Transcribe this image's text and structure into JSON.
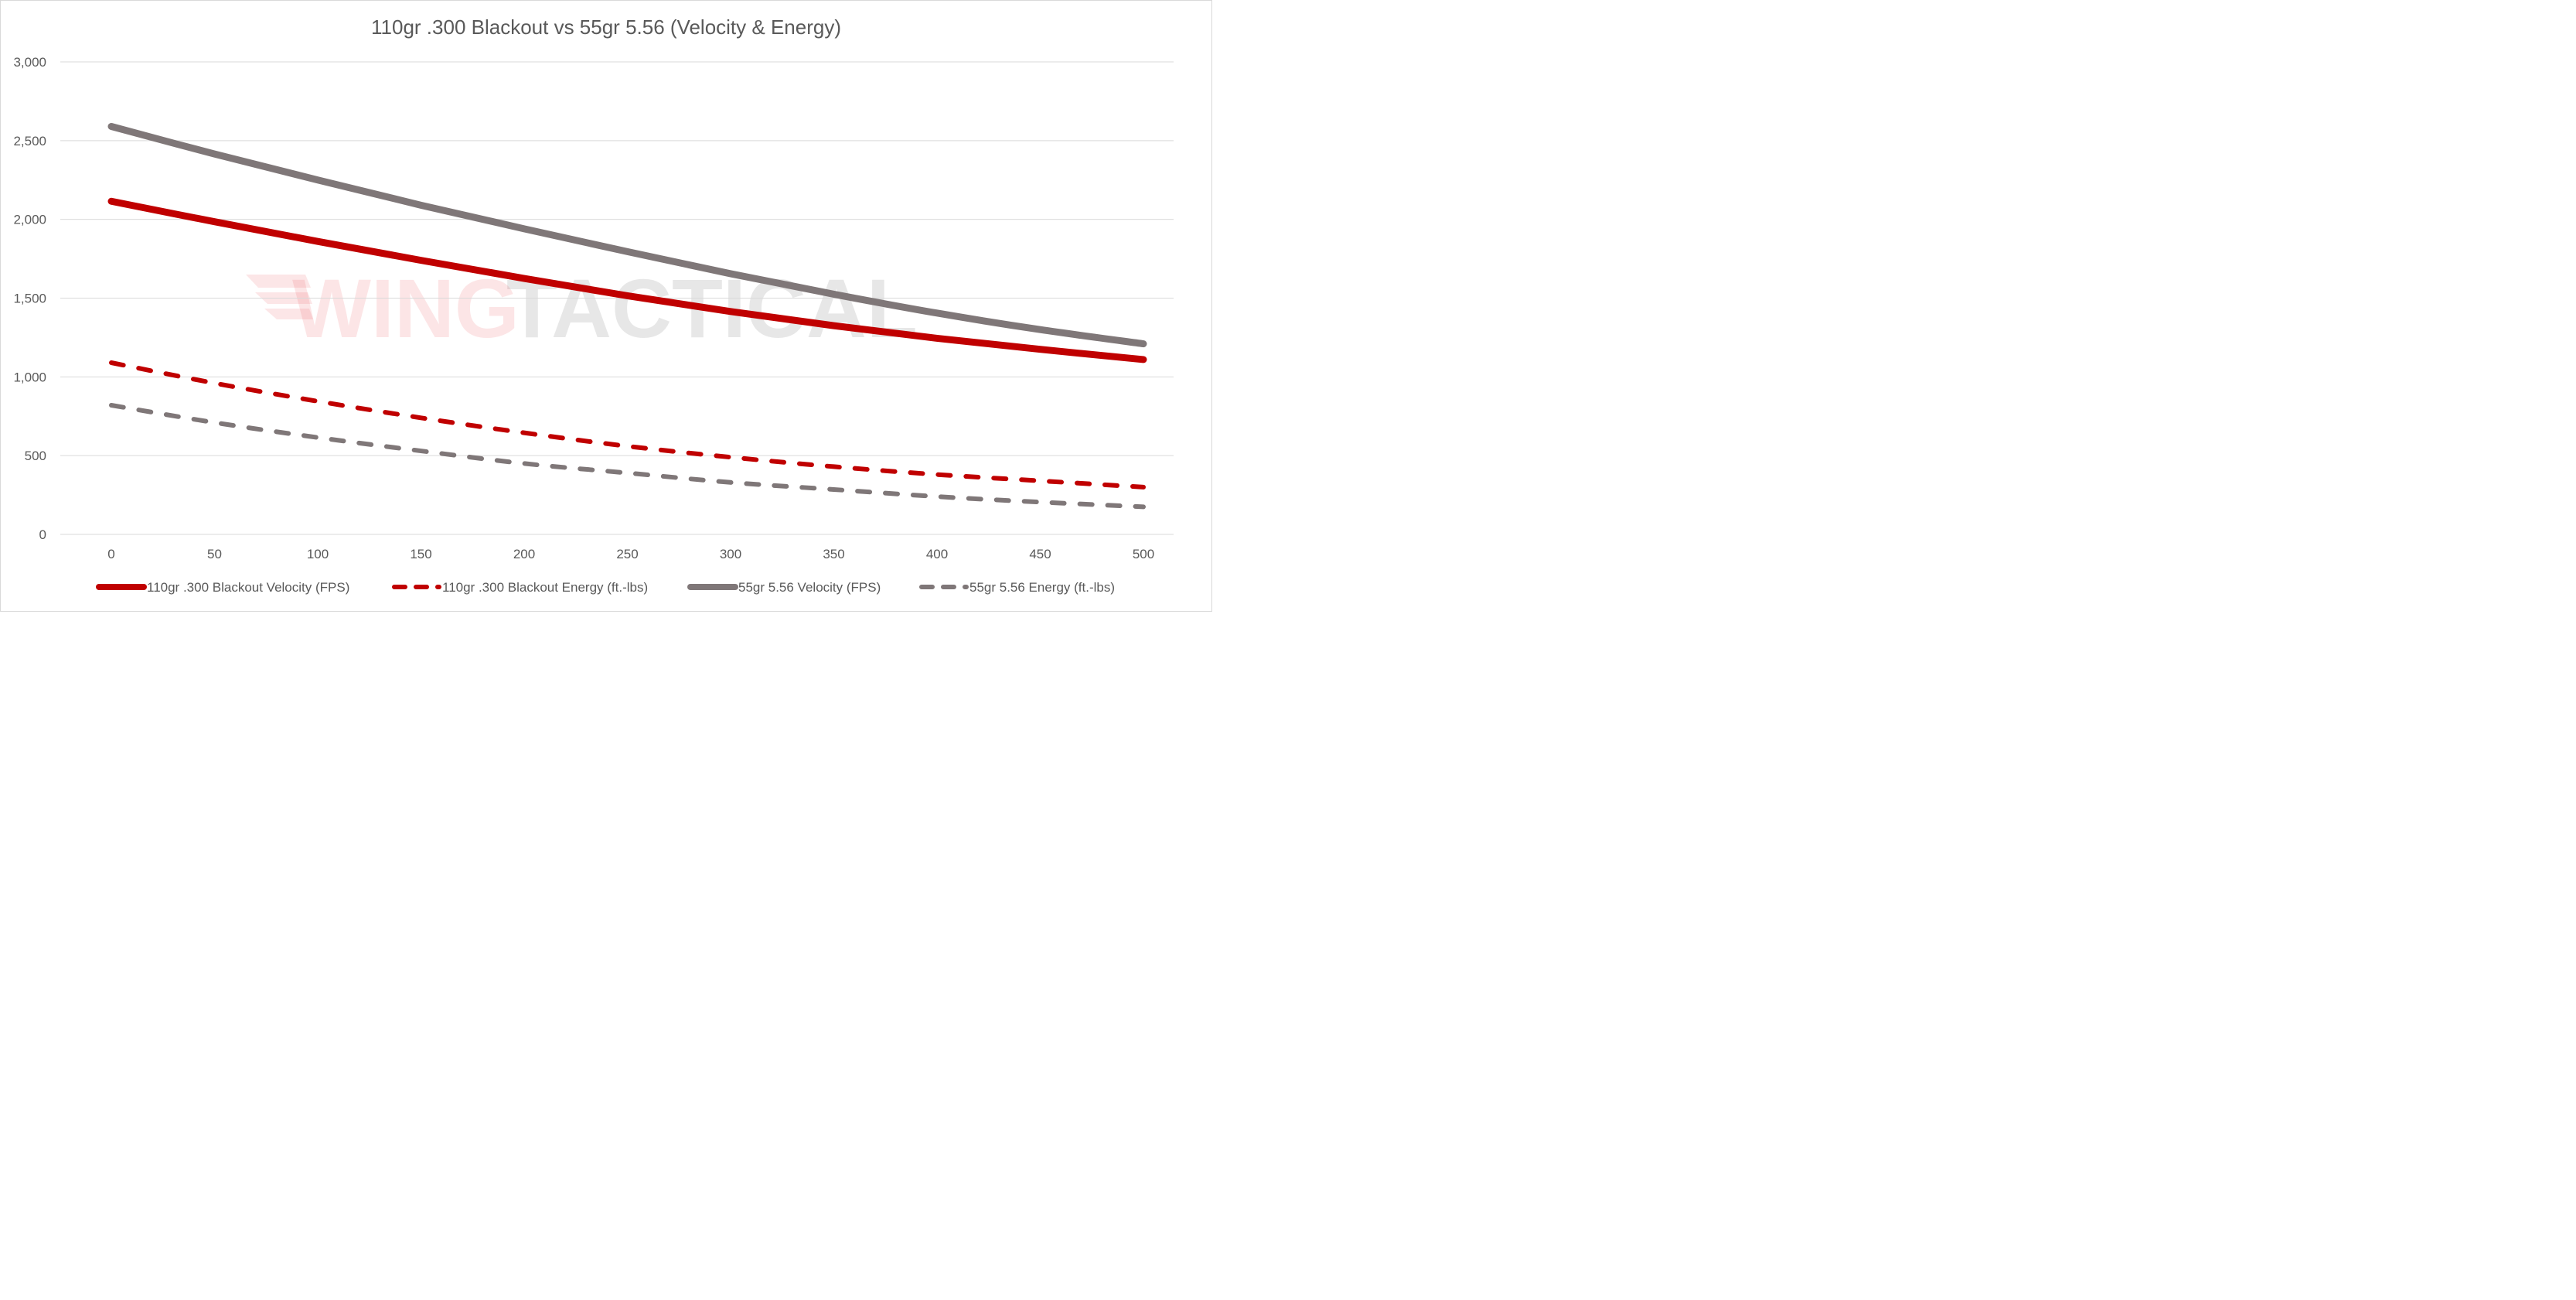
{
  "chart_data": {
    "type": "line",
    "title": "110gr .300 Blackout vs 55gr 5.56 (Velocity & Energy)",
    "xlabel": "",
    "ylabel": "",
    "x": [
      0,
      50,
      100,
      150,
      200,
      250,
      300,
      350,
      400,
      450,
      500
    ],
    "ylim": [
      0,
      3000
    ],
    "yticks": [
      "0",
      "500",
      "1,000",
      "1,500",
      "2,000",
      "2,500",
      "3,000"
    ],
    "xticks": [
      "0",
      "50",
      "100",
      "150",
      "200",
      "250",
      "300",
      "350",
      "400",
      "450",
      "500"
    ],
    "grid": "horizontal",
    "legend_position": "bottom",
    "series": [
      {
        "name": "110gr .300 Blackout Velocity (FPS)",
        "color": "#c00000",
        "style": "solid",
        "values": [
          2115,
          1985,
          1860,
          1740,
          1625,
          1515,
          1415,
          1325,
          1245,
          1175,
          1110
        ]
      },
      {
        "name": "110gr .300 Blackout Energy (ft.-lbs)",
        "color": "#c00000",
        "style": "dashed",
        "values": [
          1090,
          960,
          845,
          740,
          645,
          560,
          490,
          430,
          380,
          340,
          300
        ]
      },
      {
        "name": "55gr 5.56 Velocity (FPS)",
        "color": "#7f7778",
        "style": "solid",
        "values": [
          2590,
          2415,
          2250,
          2090,
          1940,
          1795,
          1655,
          1525,
          1405,
          1300,
          1210
        ]
      },
      {
        "name": "55gr 5.56 Energy (ft.-lbs)",
        "color": "#7f7778",
        "style": "dashed",
        "values": [
          820,
          710,
          615,
          530,
          450,
          390,
          330,
          285,
          240,
          205,
          175
        ]
      }
    ]
  },
  "watermark": {
    "part1": "WING",
    "part2": "TACTICAL"
  }
}
